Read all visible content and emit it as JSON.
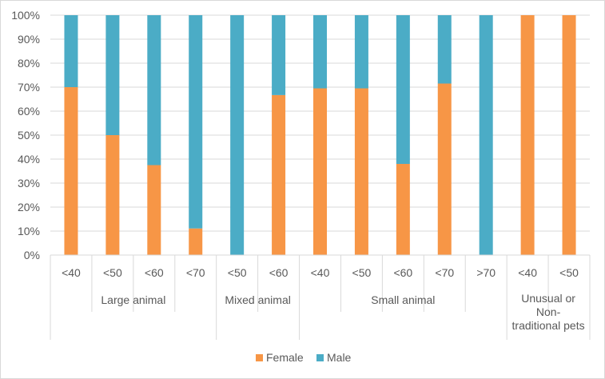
{
  "chart_data": {
    "type": "bar",
    "stacked": true,
    "percent": true,
    "groups": [
      {
        "label": "Large animal",
        "categories": [
          "<40",
          "<50",
          "<60",
          "<70"
        ]
      },
      {
        "label": "Mixed animal",
        "categories": [
          "<50",
          "<60"
        ]
      },
      {
        "label": "Small animal",
        "categories": [
          "<40",
          "<50",
          "<60",
          "<70",
          ">70"
        ]
      },
      {
        "label_lines": [
          "Unusual or",
          "Non-",
          "traditional pets"
        ],
        "categories": [
          "<40",
          "<50"
        ]
      }
    ],
    "series": [
      {
        "name": "Female",
        "color": "#F79646",
        "values": [
          70,
          50,
          37.5,
          11.1,
          0,
          66.7,
          69.5,
          69.5,
          38,
          71.5,
          0,
          100,
          100
        ]
      },
      {
        "name": "Male",
        "color": "#4BACC6",
        "values": [
          30,
          50,
          62.5,
          88.9,
          100,
          33.3,
          30.5,
          30.5,
          62,
          28.5,
          100,
          0,
          0
        ]
      }
    ],
    "y_ticks": [
      "0%",
      "10%",
      "20%",
      "30%",
      "40%",
      "50%",
      "60%",
      "70%",
      "80%",
      "90%",
      "100%"
    ],
    "ylim": [
      0,
      100
    ],
    "grid": true,
    "legend_position": "bottom"
  }
}
